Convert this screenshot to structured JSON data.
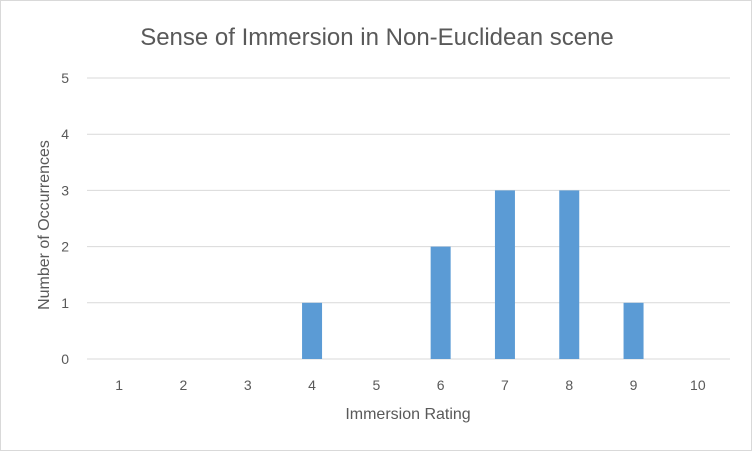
{
  "chart_data": {
    "type": "bar",
    "title": "Sense of Immersion in Non-Euclidean scene",
    "xlabel": "Immersion Rating",
    "ylabel": "Number of Occurrences",
    "categories": [
      "1",
      "2",
      "3",
      "4",
      "5",
      "6",
      "7",
      "8",
      "9",
      "10"
    ],
    "values": [
      0,
      0,
      0,
      1,
      0,
      2,
      3,
      3,
      1,
      0
    ],
    "ylim": [
      0,
      5
    ],
    "yticks": [
      "0",
      "1",
      "2",
      "3",
      "4",
      "5"
    ],
    "grid": true,
    "legend": "none",
    "bar_color": "#5b9bd5",
    "grid_color": "#d9d9d9"
  }
}
